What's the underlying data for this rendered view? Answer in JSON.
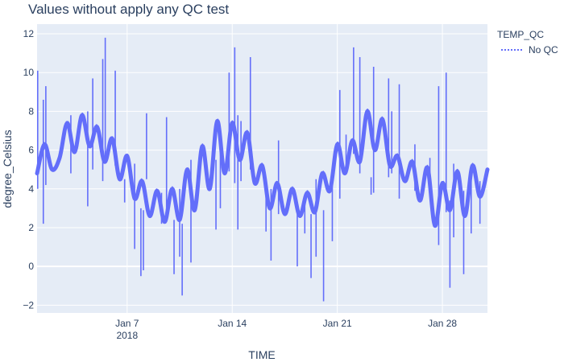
{
  "chart_data": {
    "type": "line",
    "title": "Values without apply any QC test",
    "xlabel": "TIME",
    "ylabel": "degree_Celsius",
    "xlim": [
      "2018-01-01",
      "2018-01-31"
    ],
    "ylim": [
      -2.4,
      12.5
    ],
    "x_ticks": [
      {
        "date": "2018-01-07",
        "label": "Jan 7",
        "sublabel": "2018"
      },
      {
        "date": "2018-01-14",
        "label": "Jan 14"
      },
      {
        "date": "2018-01-21",
        "label": "Jan 21"
      },
      {
        "date": "2018-01-28",
        "label": "Jan 28"
      }
    ],
    "y_ticks": [
      -2,
      0,
      2,
      4,
      6,
      8,
      10,
      12
    ],
    "grid": true,
    "legend": {
      "title": "TEMP_QC",
      "placement": "top-right",
      "entries": [
        {
          "name": "No QC",
          "color": "#636efa",
          "dash": "dot"
        }
      ]
    },
    "series": [
      {
        "name": "No QC",
        "color": "#636efa",
        "x": [
          "2018-01-01",
          "2018-01-01 12:00",
          "2018-01-02",
          "2018-01-02 12:00",
          "2018-01-03",
          "2018-01-03 12:00",
          "2018-01-04",
          "2018-01-04 12:00",
          "2018-01-05",
          "2018-01-05 12:00",
          "2018-01-06",
          "2018-01-06 12:00",
          "2018-01-07",
          "2018-01-07 12:00",
          "2018-01-08",
          "2018-01-08 12:00",
          "2018-01-09",
          "2018-01-09 12:00",
          "2018-01-10",
          "2018-01-10 12:00",
          "2018-01-11",
          "2018-01-11 12:00",
          "2018-01-12",
          "2018-01-12 12:00",
          "2018-01-13",
          "2018-01-13 12:00",
          "2018-01-14",
          "2018-01-14 12:00",
          "2018-01-15",
          "2018-01-15 12:00",
          "2018-01-16",
          "2018-01-16 12:00",
          "2018-01-17",
          "2018-01-17 12:00",
          "2018-01-18",
          "2018-01-18 12:00",
          "2018-01-19",
          "2018-01-19 12:00",
          "2018-01-20",
          "2018-01-20 12:00",
          "2018-01-21",
          "2018-01-21 12:00",
          "2018-01-22",
          "2018-01-22 12:00",
          "2018-01-23",
          "2018-01-23 12:00",
          "2018-01-24",
          "2018-01-24 12:00",
          "2018-01-25",
          "2018-01-25 12:00",
          "2018-01-26",
          "2018-01-26 12:00",
          "2018-01-27",
          "2018-01-27 12:00",
          "2018-01-28",
          "2018-01-28 12:00",
          "2018-01-29",
          "2018-01-29 12:00",
          "2018-01-30",
          "2018-01-30 12:00",
          "2018-01-31"
        ],
        "y": [
          4.8,
          6.3,
          5.0,
          5.6,
          7.4,
          5.9,
          7.8,
          6.2,
          7.2,
          5.4,
          6.6,
          4.5,
          5.7,
          3.5,
          4.4,
          2.6,
          3.9,
          2.3,
          4.0,
          2.4,
          5.0,
          2.9,
          6.2,
          4.0,
          7.5,
          4.8,
          7.4,
          5.5,
          6.9,
          4.3,
          5.2,
          3.0,
          4.3,
          2.7,
          4.0,
          2.6,
          3.8,
          2.8,
          4.8,
          3.9,
          6.3,
          4.8,
          6.5,
          5.4,
          8.0,
          6.0,
          7.6,
          5.2,
          5.7,
          4.4,
          5.4,
          3.4,
          5.1,
          2.1,
          4.3,
          2.9,
          4.9,
          2.6,
          5.2,
          3.6,
          5.0
        ],
        "spikes": [
          {
            "x": "2018-01-01 01:00",
            "ymin": 4.0,
            "ymax": 10.1
          },
          {
            "x": "2018-01-01 10:00",
            "ymin": 2.2,
            "ymax": 8.6
          },
          {
            "x": "2018-01-01 14:00",
            "ymin": 4.2,
            "ymax": 9.3
          },
          {
            "x": "2018-01-03 06:00",
            "ymin": 4.8,
            "ymax": 7.8
          },
          {
            "x": "2018-01-04 09:00",
            "ymin": 3.1,
            "ymax": 8.0
          },
          {
            "x": "2018-01-04 17:00",
            "ymin": 5.0,
            "ymax": 9.7
          },
          {
            "x": "2018-01-05 09:00",
            "ymin": 4.4,
            "ymax": 10.7
          },
          {
            "x": "2018-01-05 13:00",
            "ymin": 5.6,
            "ymax": 11.8
          },
          {
            "x": "2018-01-06 05:00",
            "ymin": 5.2,
            "ymax": 10.1
          },
          {
            "x": "2018-01-06 20:00",
            "ymin": 3.3,
            "ymax": 4.5
          },
          {
            "x": "2018-01-07 12:00",
            "ymin": 0.9,
            "ymax": 5.3
          },
          {
            "x": "2018-01-07 22:00",
            "ymin": -0.5,
            "ymax": 3.0
          },
          {
            "x": "2018-01-08 02:00",
            "ymin": -0.2,
            "ymax": 2.9
          },
          {
            "x": "2018-01-08 07:00",
            "ymin": 4.5,
            "ymax": 7.9
          },
          {
            "x": "2018-01-09 07:00",
            "ymin": 2.2,
            "ymax": 3.8
          },
          {
            "x": "2018-01-09 15:00",
            "ymin": 2.3,
            "ymax": 7.7
          },
          {
            "x": "2018-01-10 03:00",
            "ymin": -0.4,
            "ymax": 2.4
          },
          {
            "x": "2018-01-10 12:00",
            "ymin": 0.5,
            "ymax": 4.0
          },
          {
            "x": "2018-01-10 16:00",
            "ymin": -1.5,
            "ymax": 2.2
          },
          {
            "x": "2018-01-11 06:00",
            "ymin": 0.2,
            "ymax": 5.5
          },
          {
            "x": "2018-01-12 22:00",
            "ymin": 1.9,
            "ymax": 5.5
          },
          {
            "x": "2018-01-13 05:00",
            "ymin": 3.0,
            "ymax": 6.7
          },
          {
            "x": "2018-01-13 19:00",
            "ymin": 4.9,
            "ymax": 10.0
          },
          {
            "x": "2018-01-14 04:00",
            "ymin": 4.3,
            "ymax": 11.3
          },
          {
            "x": "2018-01-14 09:00",
            "ymin": 1.9,
            "ymax": 7.8
          },
          {
            "x": "2018-01-14 14:00",
            "ymin": 4.4,
            "ymax": 7.5
          },
          {
            "x": "2018-01-15 05:00",
            "ymin": 5.0,
            "ymax": 10.8
          },
          {
            "x": "2018-01-16 06:00",
            "ymin": 1.8,
            "ymax": 4.0
          },
          {
            "x": "2018-01-16 14:00",
            "ymin": 0.3,
            "ymax": 4.0
          },
          {
            "x": "2018-01-17 02:00",
            "ymin": 2.7,
            "ymax": 6.5
          },
          {
            "x": "2018-01-18 08:00",
            "ymin": 0.0,
            "ymax": 3.0
          },
          {
            "x": "2018-01-18 20:00",
            "ymin": 1.7,
            "ymax": 3.6
          },
          {
            "x": "2018-01-19 06:00",
            "ymin": -0.6,
            "ymax": 2.7
          },
          {
            "x": "2018-01-19 14:00",
            "ymin": 0.5,
            "ymax": 4.5
          },
          {
            "x": "2018-01-20 02:00",
            "ymin": -1.8,
            "ymax": 2.9
          },
          {
            "x": "2018-01-20 16:00",
            "ymin": 1.3,
            "ymax": 4.5
          },
          {
            "x": "2018-01-21 04:00",
            "ymin": 3.5,
            "ymax": 9.1
          },
          {
            "x": "2018-01-21 14:00",
            "ymin": 4.8,
            "ymax": 6.8
          },
          {
            "x": "2018-01-22 02:00",
            "ymin": 5.8,
            "ymax": 11.3
          },
          {
            "x": "2018-01-22 12:00",
            "ymin": 4.8,
            "ymax": 10.8
          },
          {
            "x": "2018-01-23 06:00",
            "ymin": 3.7,
            "ymax": 4.6
          },
          {
            "x": "2018-01-23 10:00",
            "ymin": 3.8,
            "ymax": 10.3
          },
          {
            "x": "2018-01-24 10:00",
            "ymin": 4.6,
            "ymax": 9.7
          },
          {
            "x": "2018-01-24 15:00",
            "ymin": 4.8,
            "ymax": 8.0
          },
          {
            "x": "2018-01-25 03:00",
            "ymin": 3.5,
            "ymax": 9.4
          },
          {
            "x": "2018-01-26 04:00",
            "ymin": 3.9,
            "ymax": 6.3
          },
          {
            "x": "2018-01-27 04:00",
            "ymin": 3.6,
            "ymax": 5.6
          },
          {
            "x": "2018-01-27 18:00",
            "ymin": 1.1,
            "ymax": 9.3
          },
          {
            "x": "2018-01-28 06:00",
            "ymin": 2.8,
            "ymax": 10.0
          },
          {
            "x": "2018-01-28 12:00",
            "ymin": -1.1,
            "ymax": 3.4
          },
          {
            "x": "2018-01-28 18:00",
            "ymin": 1.5,
            "ymax": 5.3
          },
          {
            "x": "2018-01-29 10:00",
            "ymin": -0.4,
            "ymax": 3.9
          },
          {
            "x": "2018-01-29 22:00",
            "ymin": 1.7,
            "ymax": 4.4
          },
          {
            "x": "2018-01-30 12:00",
            "ymin": 2.2,
            "ymax": 4.4
          }
        ]
      }
    ]
  }
}
